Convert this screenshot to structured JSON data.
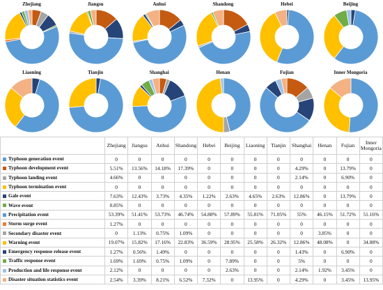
{
  "chart_data": {
    "type": "table",
    "provinces": [
      "Zhejiang",
      "Jiangsu",
      "Anhui",
      "Shandong",
      "Hebei",
      "Beijing",
      "Liaoning",
      "Tianjin",
      "Shanghai",
      "Henan",
      "Fujian",
      "Inner Mongoria"
    ],
    "donut_titles": [
      "Zhejiang",
      "Jiangsu",
      "Anhui",
      "Shandong",
      "Hebei",
      "Beijing",
      "Liaoning",
      "Tianjin",
      "Shanghai",
      "Henan",
      "Fujian",
      "Inner Mongoria"
    ],
    "events": [
      {
        "name": "Typhoon generation event",
        "color": "#5B9BD5",
        "values": [
          "0",
          "0",
          "0",
          "0",
          "0",
          "0",
          "0",
          "0",
          "0",
          "0",
          "0",
          "0"
        ]
      },
      {
        "name": "Typhoon development event",
        "color": "#C55A11",
        "values": [
          "5.51%",
          "13.56%",
          "14.18%",
          "17.39%",
          "0",
          "0",
          "0",
          "0",
          "4.29%",
          "0",
          "13.79%",
          "0"
        ]
      },
      {
        "name": "Typhoon landing event",
        "color": "#A5A5A5",
        "values": [
          "4.66%",
          "0",
          "0",
          "0",
          "0",
          "0",
          "0",
          "0",
          "2.14%",
          "0",
          "6.90%",
          "0"
        ]
      },
      {
        "name": "Typhoon termination event",
        "color": "#FFC000",
        "values": [
          "0",
          "0",
          "0",
          "0",
          "0",
          "0",
          "0",
          "0",
          "0",
          "0",
          "0",
          "0"
        ]
      },
      {
        "name": "Gale event",
        "color": "#264478",
        "values": [
          "7.63%",
          "12.43%",
          "3.73%",
          "4.35%",
          "1.22%",
          "2.63%",
          "4.65%",
          "2.63%",
          "12.86%",
          "0",
          "13.79%",
          "0"
        ]
      },
      {
        "name": "Wave event",
        "color": "#70AD47",
        "values": [
          "0.85%",
          "0",
          "0",
          "0",
          "0",
          "0",
          "0",
          "0",
          "0",
          "0",
          "0",
          "0"
        ]
      },
      {
        "name": "Precipitation event",
        "color": "#5B9BD5",
        "values": [
          "53.39%",
          "51.41%",
          "53.73%",
          "46.74%",
          "54.88%",
          "57.89%",
          "55.81%",
          "71.05%",
          "55%",
          "46.15%",
          "51.72%",
          "51.16%"
        ]
      },
      {
        "name": "Storm surge event",
        "color": "#ED7D31",
        "values": [
          "1.27%",
          "0",
          "0",
          "0",
          "0",
          "0",
          "0",
          "0",
          "0",
          "0",
          "0",
          "0"
        ]
      },
      {
        "name": "Secondary disaster event",
        "color": "#A5A5A5",
        "values": [
          "0",
          "1.13%",
          "0.75%",
          "1.09%",
          "0",
          "0",
          "0",
          "0",
          "0",
          "3.85%",
          "0",
          "0"
        ]
      },
      {
        "name": "Warning event",
        "color": "#FFC000",
        "values": [
          "19.07%",
          "15.82%",
          "17.16%",
          "22.83%",
          "36.59%",
          "28.95%",
          "25.58%",
          "26.32%",
          "12.86%",
          "48.08%",
          "0",
          "34.88%"
        ]
      },
      {
        "name": "Emergency response release event",
        "color": "#264478",
        "values": [
          "1.27%",
          "0.56%",
          "1.49%",
          "0",
          "0",
          "0",
          "0",
          "0",
          "1.43%",
          "0",
          "6.90%",
          "0"
        ]
      },
      {
        "name": "Traffic response event",
        "color": "#70AD47",
        "values": [
          "1.69%",
          "1.69%",
          "0.75%",
          "1.09%",
          "0",
          "7.89%",
          "0",
          "0",
          "5%",
          "0",
          "0",
          "0"
        ]
      },
      {
        "name": "Production and life response event",
        "color": "#9DC3E6",
        "values": [
          "2.12%",
          "0",
          "0",
          "0",
          "0",
          "2.63%",
          "0",
          "0",
          "2.14%",
          "1.92%",
          "3.45%",
          "0"
        ]
      },
      {
        "name": "Disaster situation statistics event",
        "color": "#F4B183",
        "values": [
          "2.54%",
          "3.39%",
          "8.21%",
          "6.52%",
          "7.32%",
          "0",
          "13.95%",
          "0",
          "4.29%",
          "0",
          "3.45%",
          "13.95%"
        ]
      }
    ]
  }
}
